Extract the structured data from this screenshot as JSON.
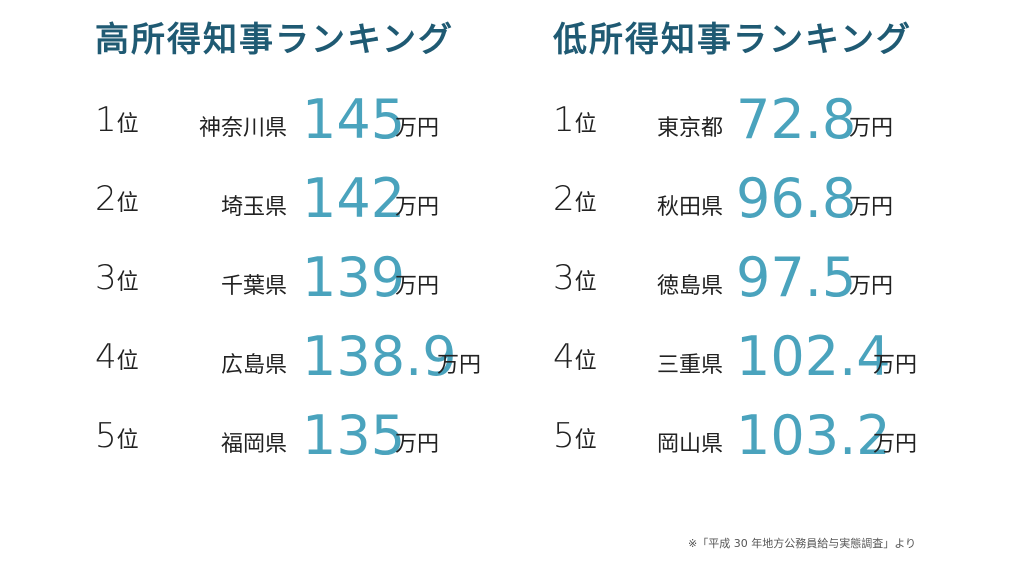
{
  "left": {
    "title": "高所得知事ランキング",
    "rows": [
      {
        "rank": "1",
        "suffix": "位",
        "pref": "神奈川県",
        "value": "145",
        "unit": "万円"
      },
      {
        "rank": "2",
        "suffix": "位",
        "pref": "埼玉県",
        "value": "142",
        "unit": "万円"
      },
      {
        "rank": "3",
        "suffix": "位",
        "pref": "千葉県",
        "value": "139",
        "unit": "万円"
      },
      {
        "rank": "4",
        "suffix": "位",
        "pref": "広島県",
        "value": "138.9",
        "unit": "万円"
      },
      {
        "rank": "5",
        "suffix": "位",
        "pref": "福岡県",
        "value": "135",
        "unit": "万円"
      }
    ]
  },
  "right": {
    "title": "低所得知事ランキング",
    "rows": [
      {
        "rank": "1",
        "suffix": "位",
        "pref": "東京都",
        "value": "72.8",
        "unit": "万円"
      },
      {
        "rank": "2",
        "suffix": "位",
        "pref": "秋田県",
        "value": "96.8",
        "unit": "万円"
      },
      {
        "rank": "3",
        "suffix": "位",
        "pref": "徳島県",
        "value": "97.5",
        "unit": "万円"
      },
      {
        "rank": "4",
        "suffix": "位",
        "pref": "三重県",
        "value": "102.4",
        "unit": "万円"
      },
      {
        "rank": "5",
        "suffix": "位",
        "pref": "岡山県",
        "value": "103.2",
        "unit": "万円"
      }
    ]
  },
  "footnote": "※「平成 30 年地方公務員給与実態調査」より",
  "colors": {
    "title": "#1f5a73",
    "value": "#4aa3bd",
    "text": "#222222"
  }
}
